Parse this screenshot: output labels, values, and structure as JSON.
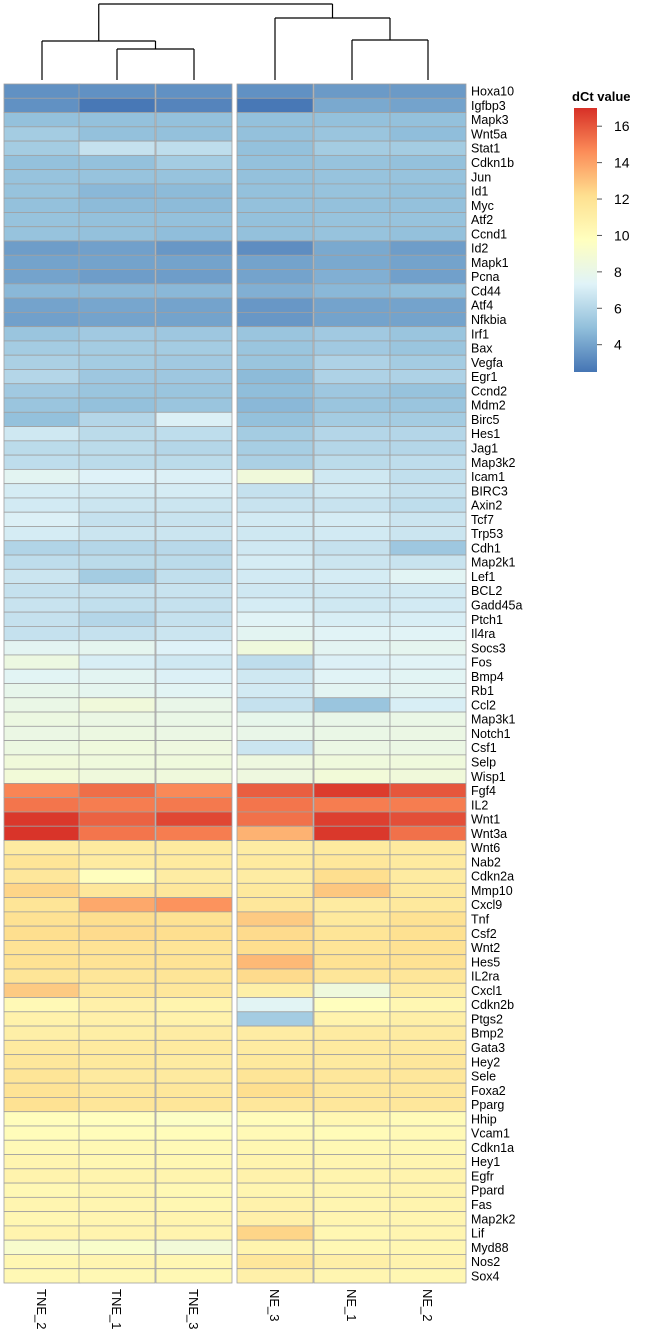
{
  "chart_data": {
    "type": "heatmap",
    "legend": {
      "title": "dCt value",
      "ticks": [
        4,
        6,
        8,
        10,
        12,
        14,
        16
      ],
      "range": [
        2.5,
        17
      ]
    },
    "colors": {
      "scale": [
        "#4575b4",
        "#91bfdb",
        "#e0f3f8",
        "#ffffbf",
        "#fee090",
        "#fc8d59",
        "#d73027"
      ]
    },
    "columns": [
      "TNE_2",
      "TNE_1",
      "TNE_3",
      "NE_3",
      "NE_1",
      "NE_2"
    ],
    "column_groups": [
      [
        "TNE_2",
        "TNE_1",
        "TNE_3"
      ],
      [
        "NE_3",
        "NE_1",
        "NE_2"
      ]
    ],
    "rows": [
      "Hoxa10",
      "Igfbp3",
      "Mapk3",
      "Wnt5a",
      "Stat1",
      "Cdkn1b",
      "Jun",
      "Id1",
      "Myc",
      "Atf2",
      "Ccnd1",
      "Id2",
      "Mapk1",
      "Pcna",
      "Cd44",
      "Atf4",
      "Nfkbia",
      "Irf1",
      "Bax",
      "Vegfa",
      "Egr1",
      "Ccnd2",
      "Mdm2",
      "Birc5",
      "Hes1",
      "Jag1",
      "Map3k2",
      "Icam1",
      "BIRC3",
      "Axin2",
      "Tcf7",
      "Trp53",
      "Cdh1",
      "Map2k1",
      "Lef1",
      "BCL2",
      "Gadd45a",
      "Ptch1",
      "Il4ra",
      "Socs3",
      "Fos",
      "Bmp4",
      "Rb1",
      "Ccl2",
      "Map3k1",
      "Notch1",
      "Csf1",
      "Selp",
      "Wisp1",
      "Fgf4",
      "IL2",
      "Wnt1",
      "Wnt3a",
      "Wnt6",
      "Nab2",
      "Cdkn2a",
      "Mmp10",
      "Cxcl9",
      "Tnf",
      "Csf2",
      "Wnt2",
      "Hes5",
      "IL2ra",
      "Cxcl1",
      "Cdkn2b",
      "Ptgs2",
      "Bmp2",
      "Gata3",
      "Hey2",
      "Sele",
      "Foxa2",
      "Pparg",
      "Hhip",
      "Vcam1",
      "Cdkn1a",
      "Hey1",
      "Egfr",
      "Ppard",
      "Fas",
      "Map2k2",
      "Lif",
      "Myd88",
      "Nos2",
      "Sox4"
    ],
    "values": [
      [
        3.4,
        3.4,
        3.4,
        3.4,
        3.7,
        3.7
      ],
      [
        3.4,
        2.6,
        3.0,
        2.6,
        4.2,
        4.0
      ],
      [
        5.0,
        5.0,
        5.0,
        5.0,
        5.0,
        5.0
      ],
      [
        5.5,
        5.0,
        5.0,
        5.0,
        5.2,
        4.9
      ],
      [
        5.5,
        6.5,
        6.3,
        5.0,
        5.5,
        5.5
      ],
      [
        5.0,
        5.0,
        5.5,
        5.0,
        5.1,
        5.0
      ],
      [
        5.1,
        5.1,
        5.1,
        5.0,
        5.1,
        5.1
      ],
      [
        5.1,
        4.7,
        4.8,
        5.0,
        5.1,
        5.0
      ],
      [
        5.0,
        4.8,
        4.8,
        5.0,
        5.0,
        5.0
      ],
      [
        5.1,
        5.0,
        5.0,
        5.0,
        5.1,
        5.1
      ],
      [
        5.1,
        5.0,
        4.9,
        5.0,
        5.1,
        5.0
      ],
      [
        3.8,
        3.9,
        3.6,
        3.3,
        4.2,
        3.8
      ],
      [
        4.0,
        4.0,
        4.0,
        4.0,
        4.2,
        4.0
      ],
      [
        4.0,
        3.8,
        3.8,
        4.0,
        4.4,
        3.9
      ],
      [
        4.7,
        4.7,
        4.7,
        4.4,
        4.7,
        4.9
      ],
      [
        4.0,
        4.1,
        4.0,
        3.6,
        4.0,
        4.0
      ],
      [
        3.9,
        4.0,
        4.0,
        3.6,
        4.0,
        4.0
      ],
      [
        5.2,
        5.4,
        5.3,
        5.2,
        5.4,
        5.2
      ],
      [
        5.5,
        5.5,
        5.5,
        5.2,
        5.4,
        5.2
      ],
      [
        5.7,
        5.5,
        5.4,
        5.2,
        5.8,
        5.5
      ],
      [
        6.0,
        5.3,
        5.3,
        4.8,
        5.8,
        5.8
      ],
      [
        5.4,
        5.2,
        5.2,
        4.9,
        5.3,
        5.1
      ],
      [
        5.2,
        5.0,
        5.2,
        4.7,
        5.2,
        5.2
      ],
      [
        5.0,
        6.0,
        7.2,
        5.0,
        5.5,
        5.5
      ],
      [
        6.8,
        6.2,
        6.3,
        5.5,
        6.0,
        6.0
      ],
      [
        6.2,
        6.2,
        6.0,
        5.6,
        6.0,
        6.0
      ],
      [
        6.3,
        6.2,
        6.2,
        5.7,
        6.2,
        6.3
      ],
      [
        7.6,
        7.3,
        7.2,
        8.6,
        6.8,
        6.4
      ],
      [
        7.0,
        6.9,
        7.0,
        6.5,
        6.8,
        6.5
      ],
      [
        6.9,
        6.7,
        6.7,
        6.6,
        6.6,
        6.3
      ],
      [
        7.2,
        6.5,
        6.6,
        6.9,
        7.0,
        6.7
      ],
      [
        7.0,
        6.7,
        6.7,
        6.8,
        6.9,
        6.7
      ],
      [
        5.9,
        6.0,
        6.1,
        6.8,
        6.5,
        5.3
      ],
      [
        6.3,
        6.2,
        6.2,
        7.0,
        6.7,
        6.6
      ],
      [
        6.7,
        5.5,
        6.4,
        6.9,
        7.0,
        7.5
      ],
      [
        6.5,
        6.5,
        6.6,
        6.8,
        6.8,
        6.9
      ],
      [
        6.6,
        6.4,
        6.5,
        7.0,
        6.8,
        6.9
      ],
      [
        6.5,
        6.0,
        6.5,
        7.4,
        7.1,
        7.1
      ],
      [
        6.5,
        6.5,
        6.7,
        7.6,
        7.4,
        7.4
      ],
      [
        7.6,
        7.7,
        7.3,
        8.5,
        7.6,
        7.7
      ],
      [
        8.3,
        7.1,
        6.8,
        6.3,
        7.2,
        7.4
      ],
      [
        7.5,
        7.6,
        7.2,
        6.8,
        7.4,
        7.5
      ],
      [
        7.9,
        7.7,
        7.5,
        6.9,
        7.6,
        7.6
      ],
      [
        8.1,
        8.6,
        8.0,
        6.5,
        5.2,
        7.1
      ],
      [
        8.3,
        8.2,
        8.1,
        7.9,
        8.0,
        8.1
      ],
      [
        8.2,
        8.3,
        8.2,
        8.0,
        8.1,
        8.2
      ],
      [
        8.3,
        8.5,
        8.4,
        6.7,
        8.2,
        8.2
      ],
      [
        8.6,
        8.5,
        8.5,
        8.4,
        8.5,
        8.5
      ],
      [
        8.7,
        8.5,
        8.5,
        8.4,
        8.7,
        8.6
      ],
      [
        14.8,
        15.4,
        14.7,
        15.8,
        16.7,
        16.0
      ],
      [
        15.2,
        15.0,
        15.1,
        15.2,
        15.0,
        15.0
      ],
      [
        16.8,
        15.7,
        16.4,
        15.3,
        16.6,
        16.2
      ],
      [
        16.9,
        15.2,
        15.0,
        13.5,
        16.8,
        15.3
      ],
      [
        11.3,
        11.4,
        11.4,
        11.2,
        11.4,
        11.4
      ],
      [
        11.8,
        11.3,
        11.4,
        11.4,
        11.6,
        11.4
      ],
      [
        11.6,
        9.8,
        11.2,
        11.2,
        12.2,
        11.3
      ],
      [
        12.5,
        11.6,
        11.6,
        11.5,
        12.9,
        11.5
      ],
      [
        11.8,
        13.8,
        14.4,
        11.6,
        11.3,
        11.5
      ],
      [
        12.0,
        12.2,
        12.0,
        12.8,
        11.5,
        12.0
      ],
      [
        12.2,
        12.3,
        12.2,
        12.3,
        11.8,
        12.1
      ],
      [
        11.9,
        11.9,
        11.8,
        12.2,
        11.8,
        12.0
      ],
      [
        12.0,
        11.9,
        11.9,
        13.3,
        12.0,
        12.0
      ],
      [
        11.8,
        11.7,
        11.8,
        12.3,
        11.7,
        11.7
      ],
      [
        12.8,
        11.7,
        11.6,
        11.0,
        8.5,
        11.2
      ],
      [
        10.2,
        10.9,
        10.6,
        7.5,
        9.8,
        10.4
      ],
      [
        10.8,
        10.9,
        10.8,
        5.5,
        10.7,
        11.0
      ],
      [
        11.0,
        11.1,
        11.2,
        11.2,
        11.3,
        11.3
      ],
      [
        11.4,
        11.4,
        11.4,
        11.3,
        11.4,
        11.4
      ],
      [
        11.6,
        11.5,
        11.3,
        11.5,
        11.4,
        11.6
      ],
      [
        11.8,
        11.4,
        11.4,
        11.8,
        11.6,
        11.6
      ],
      [
        11.9,
        11.6,
        11.6,
        12.2,
        11.6,
        11.6
      ],
      [
        12.0,
        11.7,
        11.7,
        11.6,
        11.6,
        11.6
      ],
      [
        9.9,
        9.8,
        9.5,
        10.0,
        10.4,
        10.1
      ],
      [
        10.0,
        10.0,
        10.0,
        10.2,
        10.1,
        10.2
      ],
      [
        10.2,
        10.3,
        10.2,
        10.4,
        10.3,
        10.3
      ],
      [
        10.5,
        10.4,
        10.4,
        10.6,
        10.5,
        10.5
      ],
      [
        10.7,
        10.6,
        10.6,
        10.8,
        10.6,
        10.7
      ],
      [
        10.3,
        10.5,
        10.3,
        10.5,
        10.5,
        10.6
      ],
      [
        10.5,
        10.5,
        10.4,
        10.8,
        10.5,
        10.6
      ],
      [
        10.4,
        10.5,
        10.6,
        10.9,
        10.5,
        10.5
      ],
      [
        10.6,
        10.6,
        10.6,
        12.5,
        10.4,
        10.5
      ],
      [
        9.2,
        9.3,
        8.7,
        10.6,
        10.3,
        10.4
      ],
      [
        10.4,
        10.5,
        10.4,
        11.6,
        11.0,
        10.7
      ],
      [
        10.3,
        10.3,
        10.3,
        10.9,
        10.5,
        10.4
      ]
    ]
  }
}
